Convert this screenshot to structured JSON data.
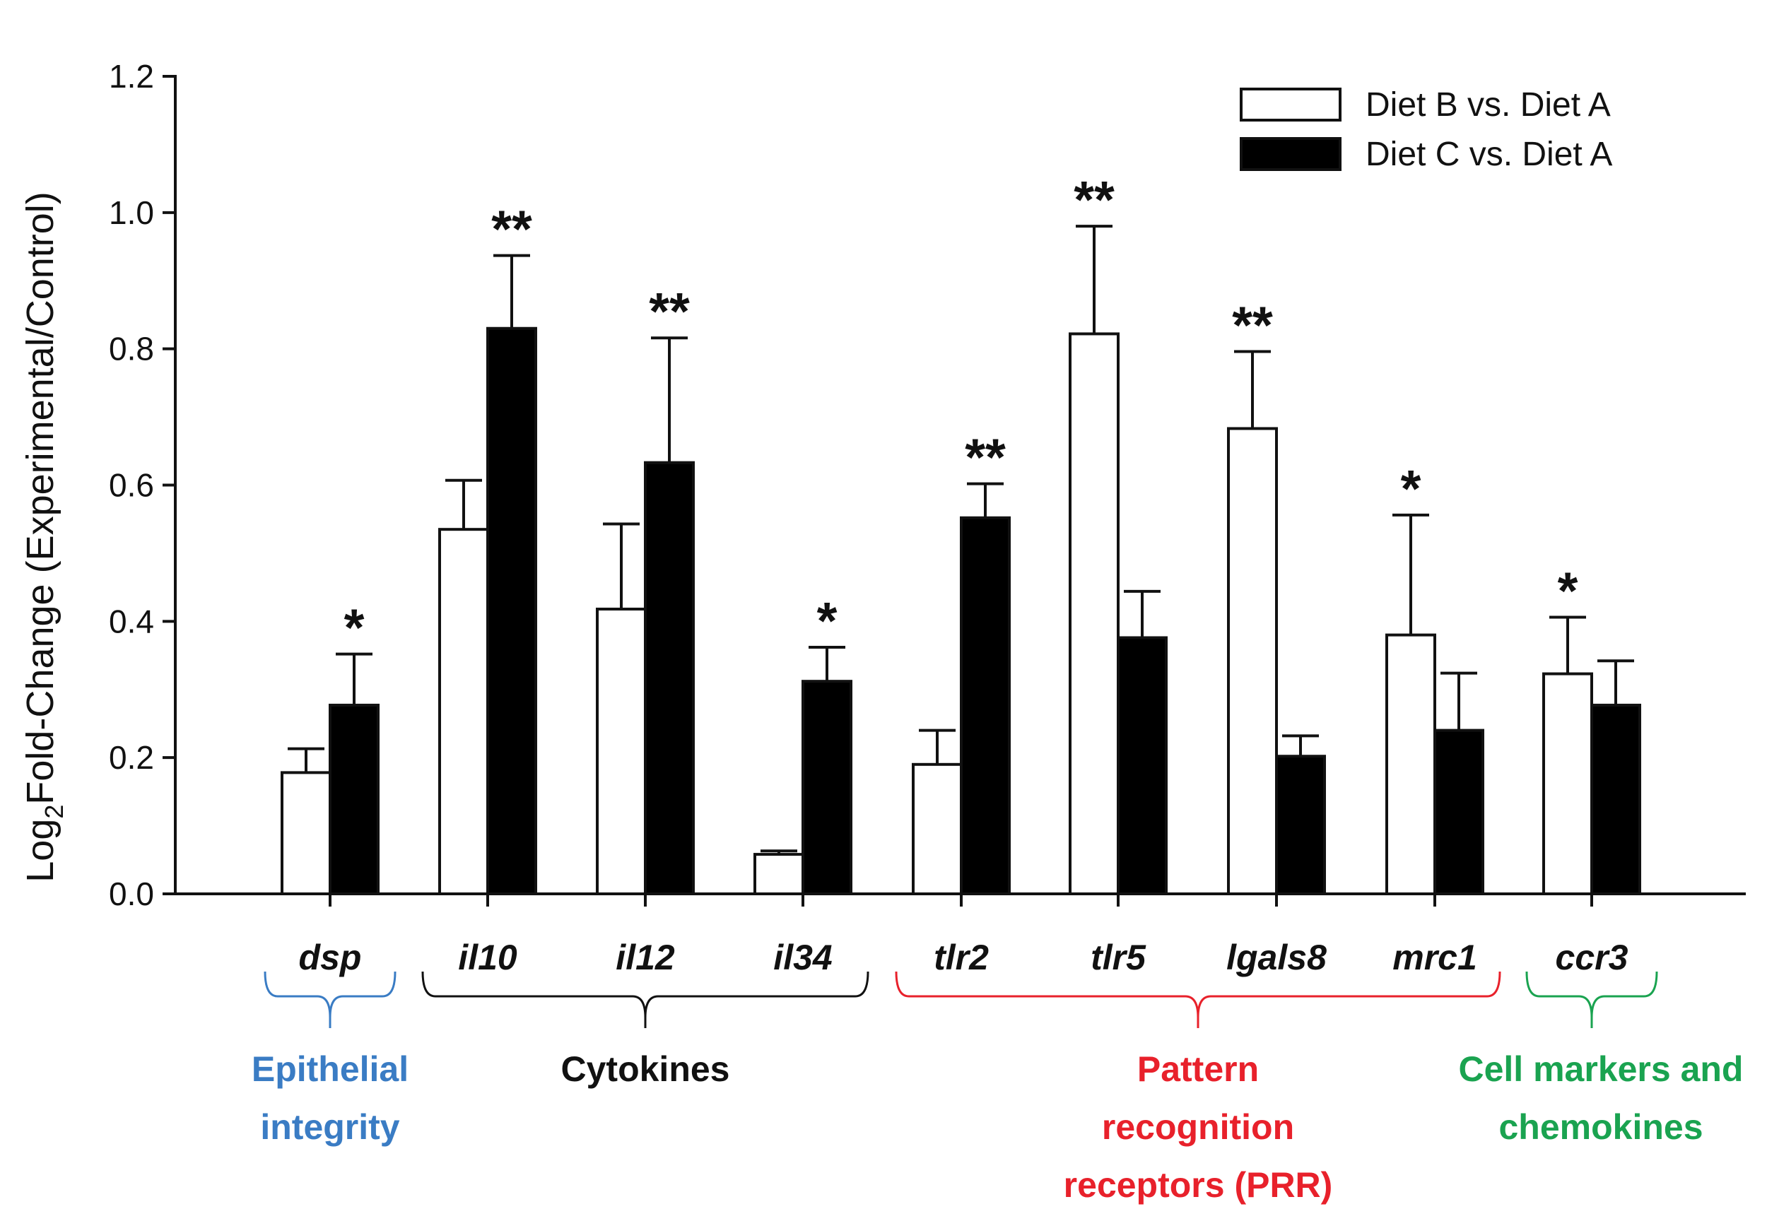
{
  "chart_data": {
    "type": "bar",
    "title": "",
    "ylabel": {
      "prefix": "Log",
      "subscript": "2",
      "suffix": "Fold-Change (Experimental/Control)"
    },
    "xlabel": "",
    "ylim": [
      0,
      1.2
    ],
    "yticks": [
      "0.0",
      "0.2",
      "0.4",
      "0.6",
      "0.8",
      "1.0",
      "1.2"
    ],
    "categories": [
      "dsp",
      "il10",
      "il12",
      "il34",
      "tlr2",
      "tlr5",
      "lgals8",
      "mrc1",
      "ccr3"
    ],
    "series": [
      {
        "name": "Diet B vs. Diet A",
        "color": "#ffffff",
        "values": [
          0.178,
          0.535,
          0.418,
          0.058,
          0.19,
          0.822,
          0.683,
          0.38,
          0.323
        ],
        "errors": [
          0.035,
          0.072,
          0.125,
          0.005,
          0.05,
          0.158,
          0.113,
          0.176,
          0.083
        ]
      },
      {
        "name": "Diet C vs. Diet A",
        "color": "#000000",
        "values": [
          0.277,
          0.83,
          0.633,
          0.312,
          0.552,
          0.376,
          0.202,
          0.24,
          0.277
        ],
        "errors": [
          0.075,
          0.107,
          0.183,
          0.05,
          0.05,
          0.068,
          0.03,
          0.084,
          0.065
        ]
      }
    ],
    "significance": [
      {
        "category": "dsp",
        "series": 1,
        "label": "*"
      },
      {
        "category": "il10",
        "series": 1,
        "label": "**"
      },
      {
        "category": "il12",
        "series": 1,
        "label": "**"
      },
      {
        "category": "il34",
        "series": 1,
        "label": "*"
      },
      {
        "category": "tlr2",
        "series": 1,
        "label": "**"
      },
      {
        "category": "tlr5",
        "series": 0,
        "label": "**"
      },
      {
        "category": "lgals8",
        "series": 0,
        "label": "**"
      },
      {
        "category": "mrc1",
        "series": 0,
        "label": "*"
      },
      {
        "category": "ccr3",
        "series": 0,
        "label": "*"
      }
    ],
    "groups": [
      {
        "lines": [
          "Epithelial",
          "integrity"
        ],
        "from": "dsp",
        "to": "dsp",
        "color": "#3a7cc4"
      },
      {
        "lines": [
          "Cytokines"
        ],
        "from": "il10",
        "to": "il34",
        "color": "#111111"
      },
      {
        "lines": [
          "Pattern",
          "recognition",
          "receptors (PRR)"
        ],
        "from": "tlr2",
        "to": "mrc1",
        "color": "#e8212b"
      },
      {
        "lines": [
          "Cell markers and",
          "chemokines"
        ],
        "from": "ccr3",
        "to": "ccr3",
        "color": "#1aa350"
      }
    ],
    "legend": {
      "placement": "top-right"
    }
  }
}
